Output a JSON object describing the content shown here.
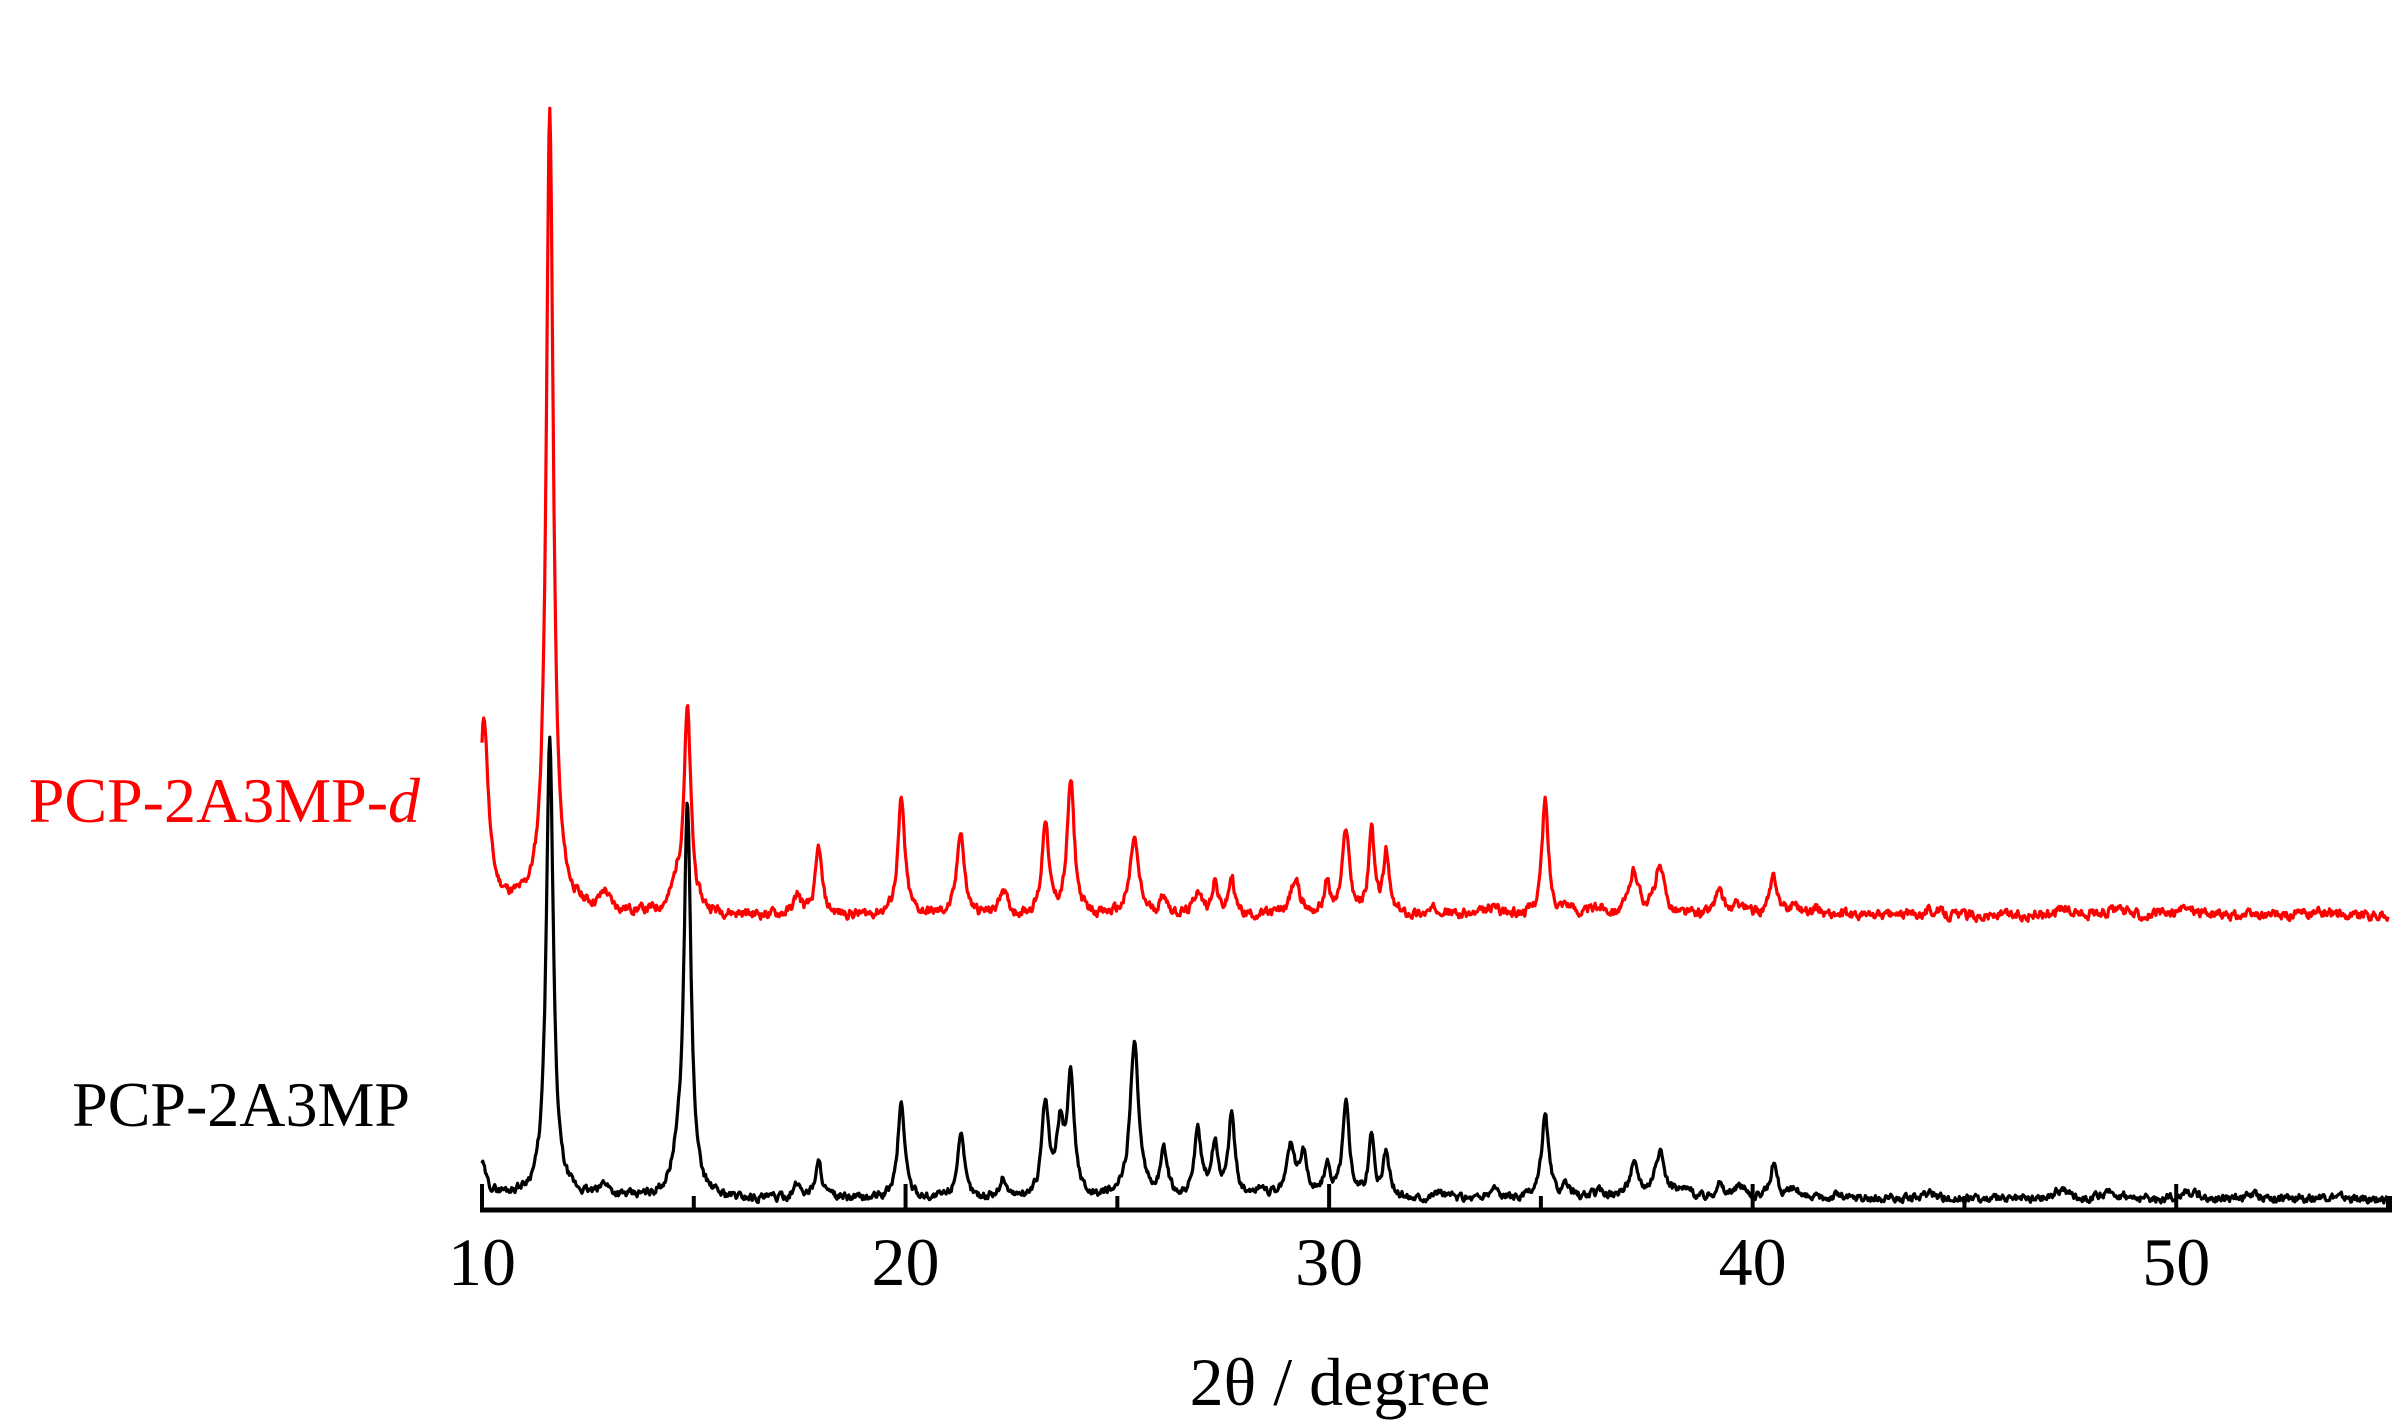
{
  "chart_data": {
    "type": "line",
    "title": "",
    "xlabel": "2θ / degree",
    "ylabel": "",
    "xlim": [
      10,
      55
    ],
    "xticks": [
      10,
      20,
      30,
      40,
      50
    ],
    "grid": false,
    "y_units": "intensity (arbitrary, offset; curves are drawn with a vertical offset)",
    "series": [
      {
        "name": "PCP-2A3MP-d",
        "name_main": "PCP-2A3MP-",
        "name_italic": "d",
        "color": "#ff0000",
        "baseline": 8,
        "peaks": [
          [
            10.05,
            95,
            0.12
          ],
          [
            11.6,
            420,
            0.1
          ],
          [
            12.9,
            9,
            0.12
          ],
          [
            14.6,
            12,
            0.15
          ],
          [
            14.85,
            105,
            0.1
          ],
          [
            17.45,
            10,
            0.1
          ],
          [
            17.95,
            35,
            0.09
          ],
          [
            19.9,
            60,
            0.1
          ],
          [
            21.3,
            45,
            0.1
          ],
          [
            22.3,
            14,
            0.1
          ],
          [
            23.3,
            50,
            0.09
          ],
          [
            23.9,
            70,
            0.1
          ],
          [
            25.4,
            40,
            0.12
          ],
          [
            26.1,
            10,
            0.1
          ],
          [
            26.9,
            13,
            0.1
          ],
          [
            27.3,
            18,
            0.08
          ],
          [
            27.7,
            20,
            0.08
          ],
          [
            29.2,
            18,
            0.14
          ],
          [
            29.95,
            16,
            0.08
          ],
          [
            30.4,
            45,
            0.1
          ],
          [
            31.0,
            45,
            0.08
          ],
          [
            31.35,
            32,
            0.08
          ],
          [
            32.6,
            4,
            0.2
          ],
          [
            33.9,
            4,
            0.2
          ],
          [
            35.1,
            60,
            0.09
          ],
          [
            35.6,
            5,
            0.15
          ],
          [
            36.4,
            4,
            0.2
          ],
          [
            37.2,
            23,
            0.13
          ],
          [
            37.8,
            24,
            0.14
          ],
          [
            39.2,
            12,
            0.12
          ],
          [
            39.7,
            6,
            0.14
          ],
          [
            40.5,
            20,
            0.11
          ],
          [
            41.0,
            6,
            0.12
          ],
          [
            41.5,
            4,
            0.15
          ],
          [
            44.2,
            3,
            0.3
          ],
          [
            47.3,
            4,
            0.25
          ],
          [
            48.5,
            3,
            0.35
          ],
          [
            50.3,
            4,
            0.3
          ],
          [
            53.5,
            2,
            0.4
          ]
        ]
      },
      {
        "name": "PCP-2A3MP",
        "color": "#000000",
        "baseline": 4,
        "peaks": [
          [
            10.0,
            18,
            0.1
          ],
          [
            11.6,
            285,
            0.1
          ],
          [
            12.9,
            8,
            0.12
          ],
          [
            14.6,
            15,
            0.15
          ],
          [
            14.85,
            245,
            0.1
          ],
          [
            17.45,
            8,
            0.12
          ],
          [
            17.95,
            22,
            0.1
          ],
          [
            19.9,
            60,
            0.1
          ],
          [
            21.3,
            40,
            0.1
          ],
          [
            22.3,
            12,
            0.1
          ],
          [
            23.3,
            57,
            0.1
          ],
          [
            23.65,
            40,
            0.1
          ],
          [
            23.9,
            75,
            0.1
          ],
          [
            25.4,
            98,
            0.12
          ],
          [
            26.1,
            28,
            0.1
          ],
          [
            26.9,
            40,
            0.1
          ],
          [
            27.3,
            32,
            0.1
          ],
          [
            27.7,
            52,
            0.09
          ],
          [
            28.4,
            6,
            0.15
          ],
          [
            29.1,
            32,
            0.12
          ],
          [
            29.4,
            26,
            0.1
          ],
          [
            29.95,
            18,
            0.1
          ],
          [
            30.4,
            58,
            0.1
          ],
          [
            31.0,
            38,
            0.08
          ],
          [
            31.35,
            28,
            0.09
          ],
          [
            32.6,
            4,
            0.2
          ],
          [
            33.9,
            7,
            0.12
          ],
          [
            35.1,
            52,
            0.1
          ],
          [
            35.6,
            6,
            0.15
          ],
          [
            36.4,
            4,
            0.2
          ],
          [
            37.2,
            20,
            0.14
          ],
          [
            37.8,
            28,
            0.15
          ],
          [
            38.4,
            5,
            0.2
          ],
          [
            39.2,
            10,
            0.1
          ],
          [
            39.7,
            8,
            0.15
          ],
          [
            40.5,
            22,
            0.1
          ],
          [
            41.0,
            6,
            0.12
          ],
          [
            42.0,
            3,
            0.2
          ],
          [
            44.2,
            3,
            0.3
          ],
          [
            47.3,
            7,
            0.2
          ],
          [
            48.5,
            4,
            0.3
          ],
          [
            50.3,
            5,
            0.25
          ],
          [
            51.8,
            3,
            0.3
          ],
          [
            53.5,
            2,
            0.4
          ]
        ]
      }
    ]
  }
}
